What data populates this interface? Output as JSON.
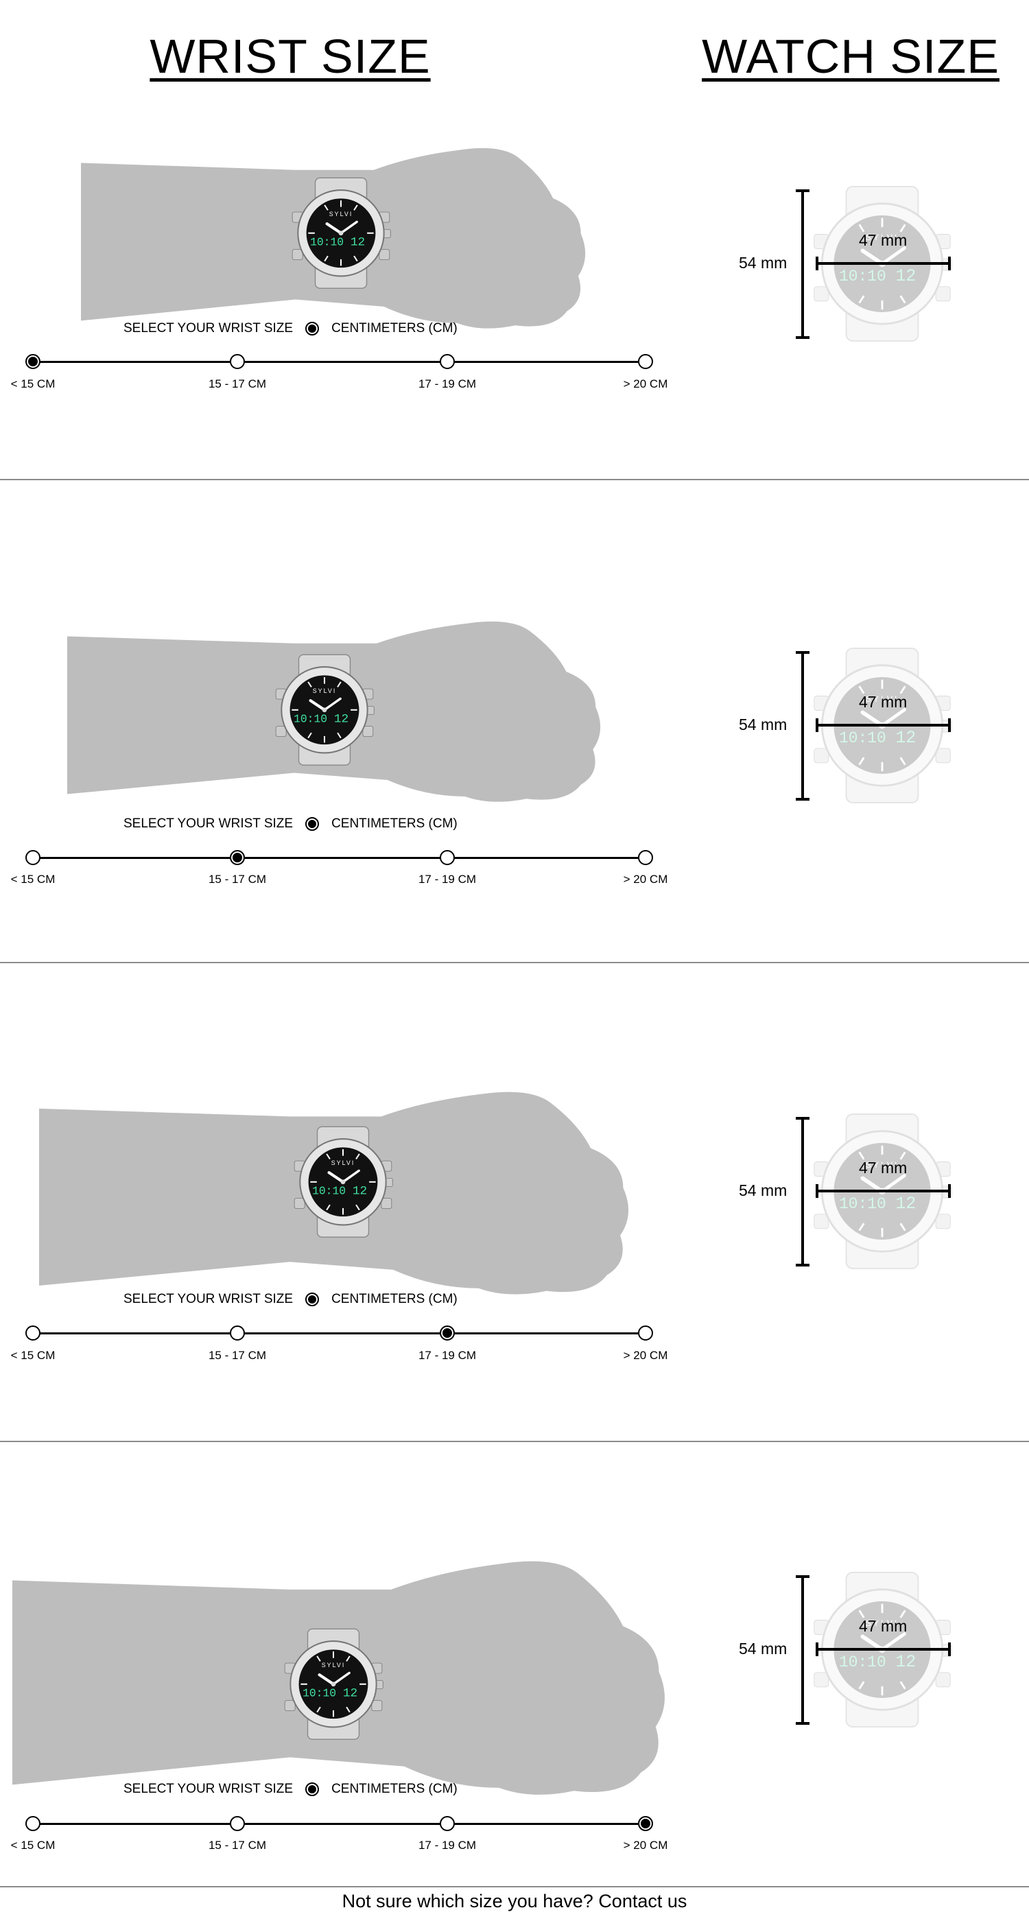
{
  "headers": {
    "wrist": "WRIST SIZE",
    "watch": "WATCH SIZE"
  },
  "select_label": "SELECT YOUR WRIST SIZE",
  "unit_label": "CENTIMETERS (CM)",
  "size_options": [
    "< 15 CM",
    "15 - 17 CM",
    "17 - 19 CM",
    "> 20 CM"
  ],
  "watch_brand": "SYLVI",
  "watch_digits": {
    "time": "10:10",
    "date": "12"
  },
  "measurements": {
    "height": "54 mm",
    "width": "47 mm"
  },
  "sections": [
    {
      "selected_index": 0
    },
    {
      "selected_index": 1
    },
    {
      "selected_index": 2
    },
    {
      "selected_index": 3
    }
  ],
  "colors": {
    "arm": "#bdbdbd",
    "digits": "#3fe0a0",
    "track": "#000000",
    "divider": "#8c8c8c"
  },
  "footer": {
    "text": "Not sure which size you have?",
    "link": "Contact us"
  }
}
